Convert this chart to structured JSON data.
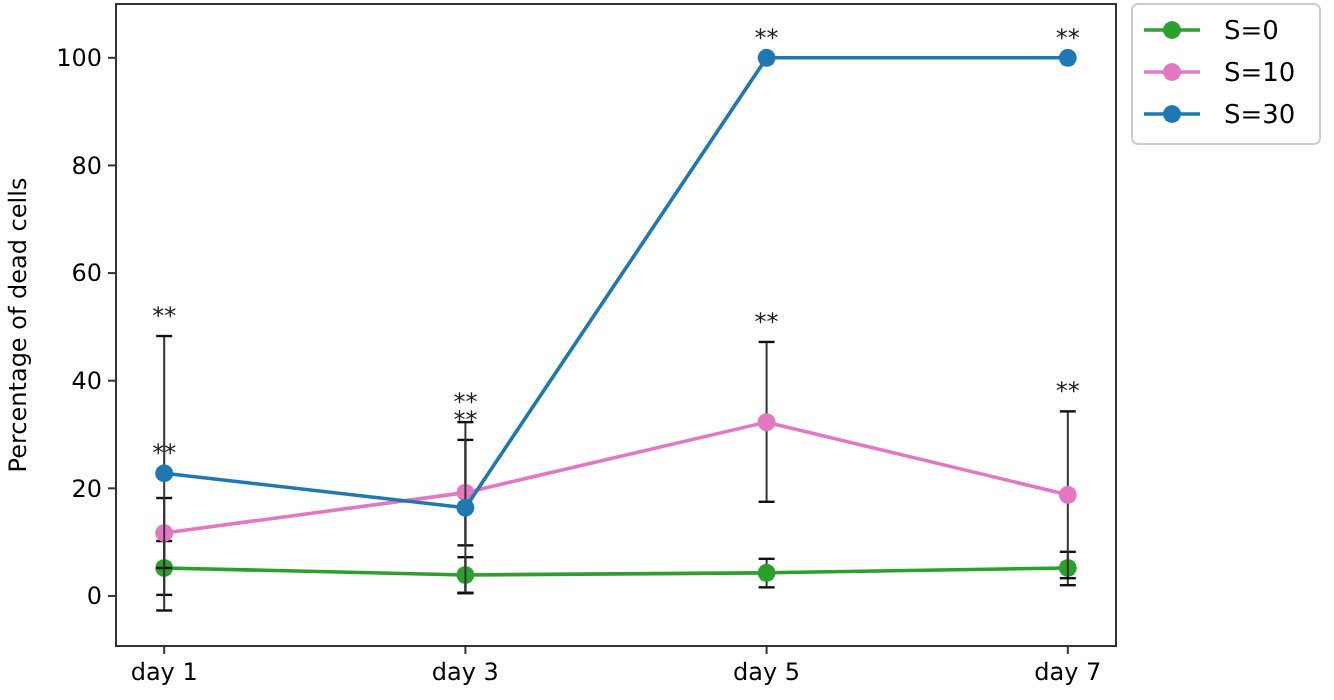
{
  "chart_data": {
    "type": "line",
    "ylabel": "Percentage of dead cells",
    "categories": [
      "day 1",
      "day 3",
      "day 5",
      "day 7"
    ],
    "ylim": [
      -9.3,
      110
    ],
    "yticks": [
      0,
      20,
      40,
      60,
      80,
      100
    ],
    "marker": "circle",
    "legend": "top right",
    "grid": false,
    "series": [
      {
        "name": "S=0",
        "color": "#2ca02c",
        "values": [
          5.2,
          3.9,
          4.3,
          5.2
        ],
        "errors": [
          [
            0.2,
            10.2
          ],
          [
            0.6,
            7.2
          ],
          [
            1.6,
            6.9
          ],
          [
            2.0,
            8.2
          ]
        ]
      },
      {
        "name": "S=10",
        "color": "#e377c2",
        "values": [
          11.7,
          19.2,
          32.3,
          18.8
        ],
        "errors": [
          [
            5.2,
            18.2
          ],
          [
            9.4,
            29.0
          ],
          [
            17.5,
            47.2
          ],
          [
            3.3,
            34.3
          ]
        ]
      },
      {
        "name": "S=30",
        "color": "#1f77b4",
        "values": [
          22.8,
          16.4,
          100,
          100
        ],
        "errors": [
          [
            -2.7,
            48.3
          ],
          [
            0.5,
            32.3
          ],
          null,
          null
        ]
      }
    ],
    "annotations": [
      {
        "text": "**",
        "x": "day 1",
        "y": 48.3
      },
      {
        "text": "**",
        "x": "day 1",
        "y": 22.8
      },
      {
        "text": "**",
        "x": "day 3",
        "y": 32.3
      },
      {
        "text": "**",
        "x": "day 3",
        "y": 29.0
      },
      {
        "text": "**",
        "x": "day 5",
        "y": 100
      },
      {
        "text": "**",
        "x": "day 5",
        "y": 47.2
      },
      {
        "text": "**",
        "x": "day 7",
        "y": 100
      },
      {
        "text": "**",
        "x": "day 7",
        "y": 34.3
      }
    ]
  }
}
